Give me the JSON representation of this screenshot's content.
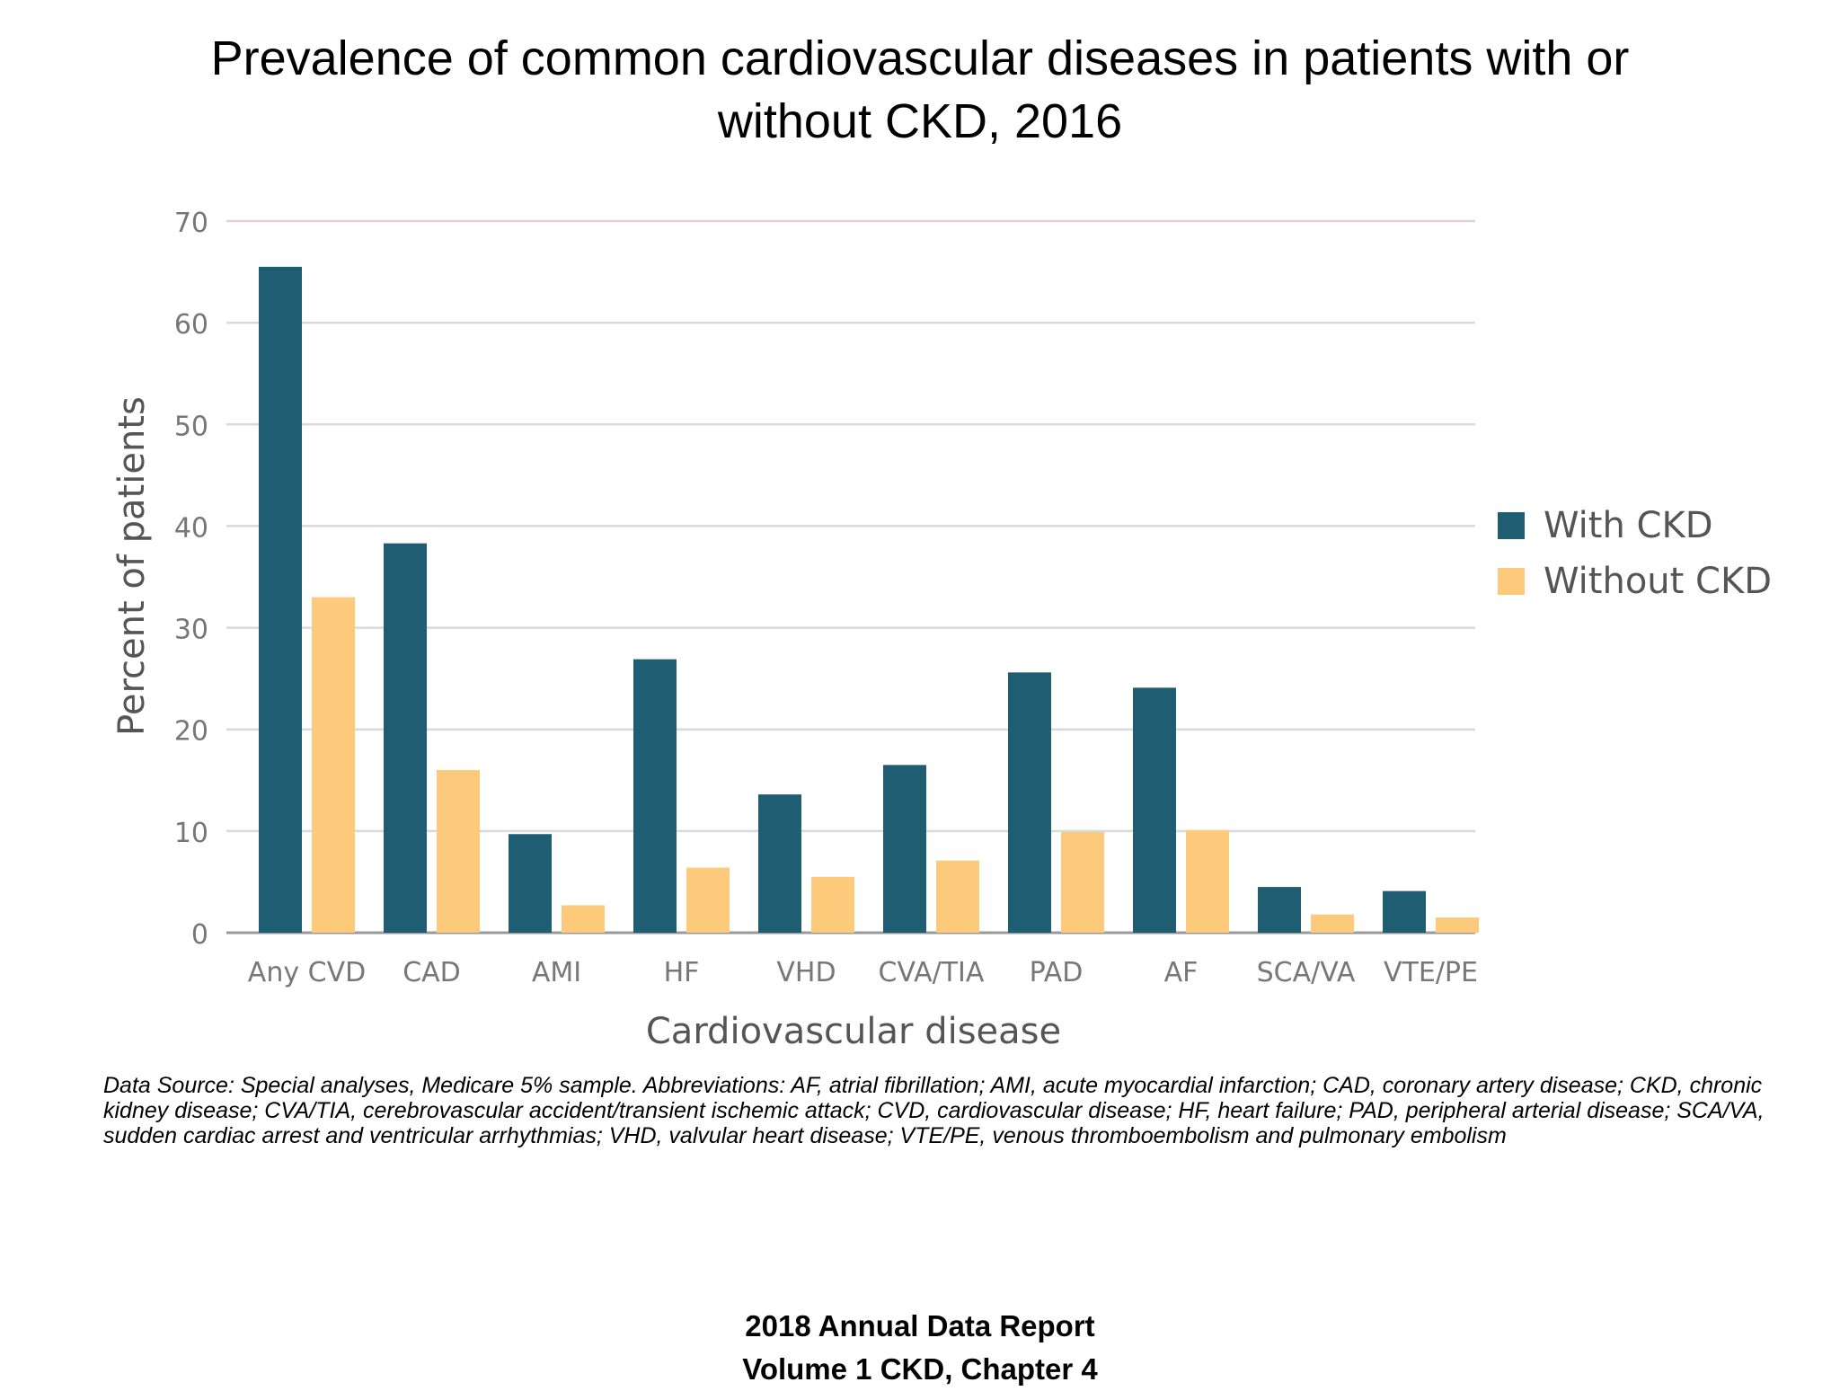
{
  "chart_data": {
    "type": "bar",
    "title": "Prevalence of common cardiovascular diseases in patients with or without CKD, 2016",
    "title_lines": [
      "Prevalence of common cardiovascular diseases in patients with or",
      "without CKD, 2016"
    ],
    "xlabel": "Cardiovascular disease",
    "ylabel": "Percent of patients",
    "ylim": [
      0,
      70
    ],
    "yticks": [
      0,
      10,
      20,
      30,
      40,
      50,
      60,
      70
    ],
    "grid": true,
    "legend_position": "right",
    "categories": [
      "Any CVD",
      "CAD",
      "AMI",
      "HF",
      "VHD",
      "CVA/TIA",
      "PAD",
      "AF",
      "SCA/VA",
      "VTE/PE"
    ],
    "series": [
      {
        "name": "With CKD",
        "color": "#1f5e72",
        "values": [
          65.5,
          38.3,
          9.7,
          26.9,
          13.6,
          16.5,
          25.6,
          24.1,
          4.5,
          4.1
        ]
      },
      {
        "name": "Without CKD",
        "color": "#fdc97a",
        "values": [
          33.0,
          16.0,
          2.7,
          6.4,
          5.5,
          7.1,
          9.9,
          10.1,
          1.8,
          1.5
        ]
      }
    ]
  },
  "footnote": "Data Source: Special analyses, Medicare 5% sample. Abbreviations: AF, atrial fibrillation; AMI, acute myocardial infarction; CAD, coronary artery disease; CKD, chronic kidney disease; CVA/TIA, cerebrovascular accident/transient ischemic attack; CVD, cardiovascular disease; HF, heart failure; PAD, peripheral arterial disease; SCA/VA, sudden cardiac arrest and ventricular arrhythmias; VHD, valvular heart disease; VTE/PE, venous thromboembolism and pulmonary embolism",
  "footer": {
    "line1": "2018 Annual Data Report",
    "line2": "Volume 1 CKD, Chapter 4"
  }
}
